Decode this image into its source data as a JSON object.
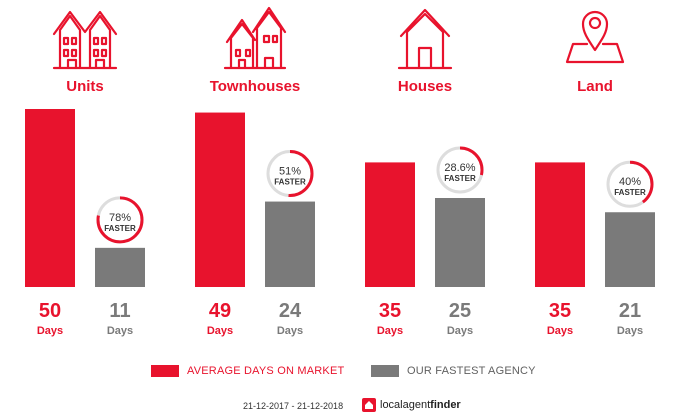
{
  "colors": {
    "avg": "#e8132d",
    "agency": "#7a7a7a",
    "ring_track": "#dddddd"
  },
  "chart_data": {
    "type": "bar",
    "categories": [
      "Units",
      "Townhouses",
      "Houses",
      "Land"
    ],
    "icons": [
      "units-icon",
      "townhouses-icon",
      "houses-icon",
      "land-pin-icon"
    ],
    "series": [
      {
        "name": "AVERAGE DAYS ON MARKET",
        "values": [
          50,
          49,
          35,
          35
        ]
      },
      {
        "name": "OUR FASTEST AGENCY",
        "values": [
          11,
          24,
          25,
          21
        ]
      }
    ],
    "value_unit": "Days",
    "faster": [
      {
        "label": "78%",
        "value": 78
      },
      {
        "label": "51%",
        "value": 51
      },
      {
        "label": "28.6%",
        "value": 28.6
      },
      {
        "label": "40%",
        "value": 40
      }
    ],
    "faster_text": "FASTER",
    "ylim": [
      0,
      50
    ],
    "legend_position": "bottom"
  },
  "footer": {
    "date_range": "21-12-2017 - 21-12-2018",
    "brand_prefix": "localagent",
    "brand_suffix": "finder"
  }
}
